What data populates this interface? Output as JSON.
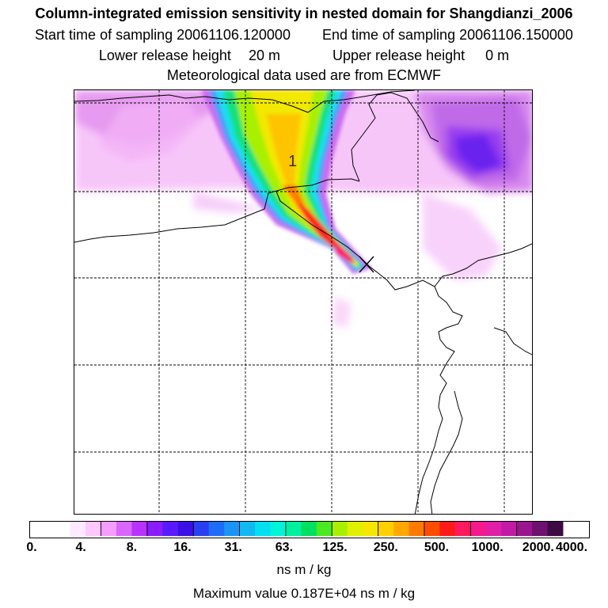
{
  "titles": {
    "main": "Column-integrated emission sensitivity in nested domain for Shangdianzi_2006",
    "start_label": "Start time of sampling",
    "start_value": "20061106.120000",
    "end_label": "End time of sampling",
    "end_value": "20061106.150000",
    "lower_label": "Lower release height",
    "lower_value": "20 m",
    "upper_label": "Upper release height",
    "upper_value": "0 m",
    "meteo": "Meteorological data used are from ECMWF"
  },
  "map": {
    "contour_label": "1",
    "release_marker": "release-point-cross"
  },
  "colorbar": {
    "ticks": [
      "0.",
      "4.",
      "8.",
      "16.",
      "31.",
      "63.",
      "125.",
      "250.",
      "500.",
      "1000.",
      "2000.",
      "4000."
    ],
    "colors": [
      "#ffffff",
      "#ffe9ff",
      "#ffc6ff",
      "#f59cff",
      "#d966ff",
      "#b833ff",
      "#8a1cff",
      "#5a1aff",
      "#3a10e6",
      "#2a3ff2",
      "#1f6cf6",
      "#1a94f6",
      "#12b8f2",
      "#00e0f0",
      "#00f5d8",
      "#00f0a0",
      "#00e060",
      "#4aea20",
      "#a8f000",
      "#e0f000",
      "#f7e600",
      "#ffcf00",
      "#ffa800",
      "#ff7a00",
      "#ff4d00",
      "#ff1a1a",
      "#ff1a5e",
      "#f21a8c",
      "#e01ea6",
      "#c21aa6",
      "#9a168c",
      "#6e1070",
      "#3e0a44"
    ],
    "units": "ns m / kg"
  },
  "max_label": "Maximum value",
  "max_value": "0.187E+04 ns m / kg"
}
